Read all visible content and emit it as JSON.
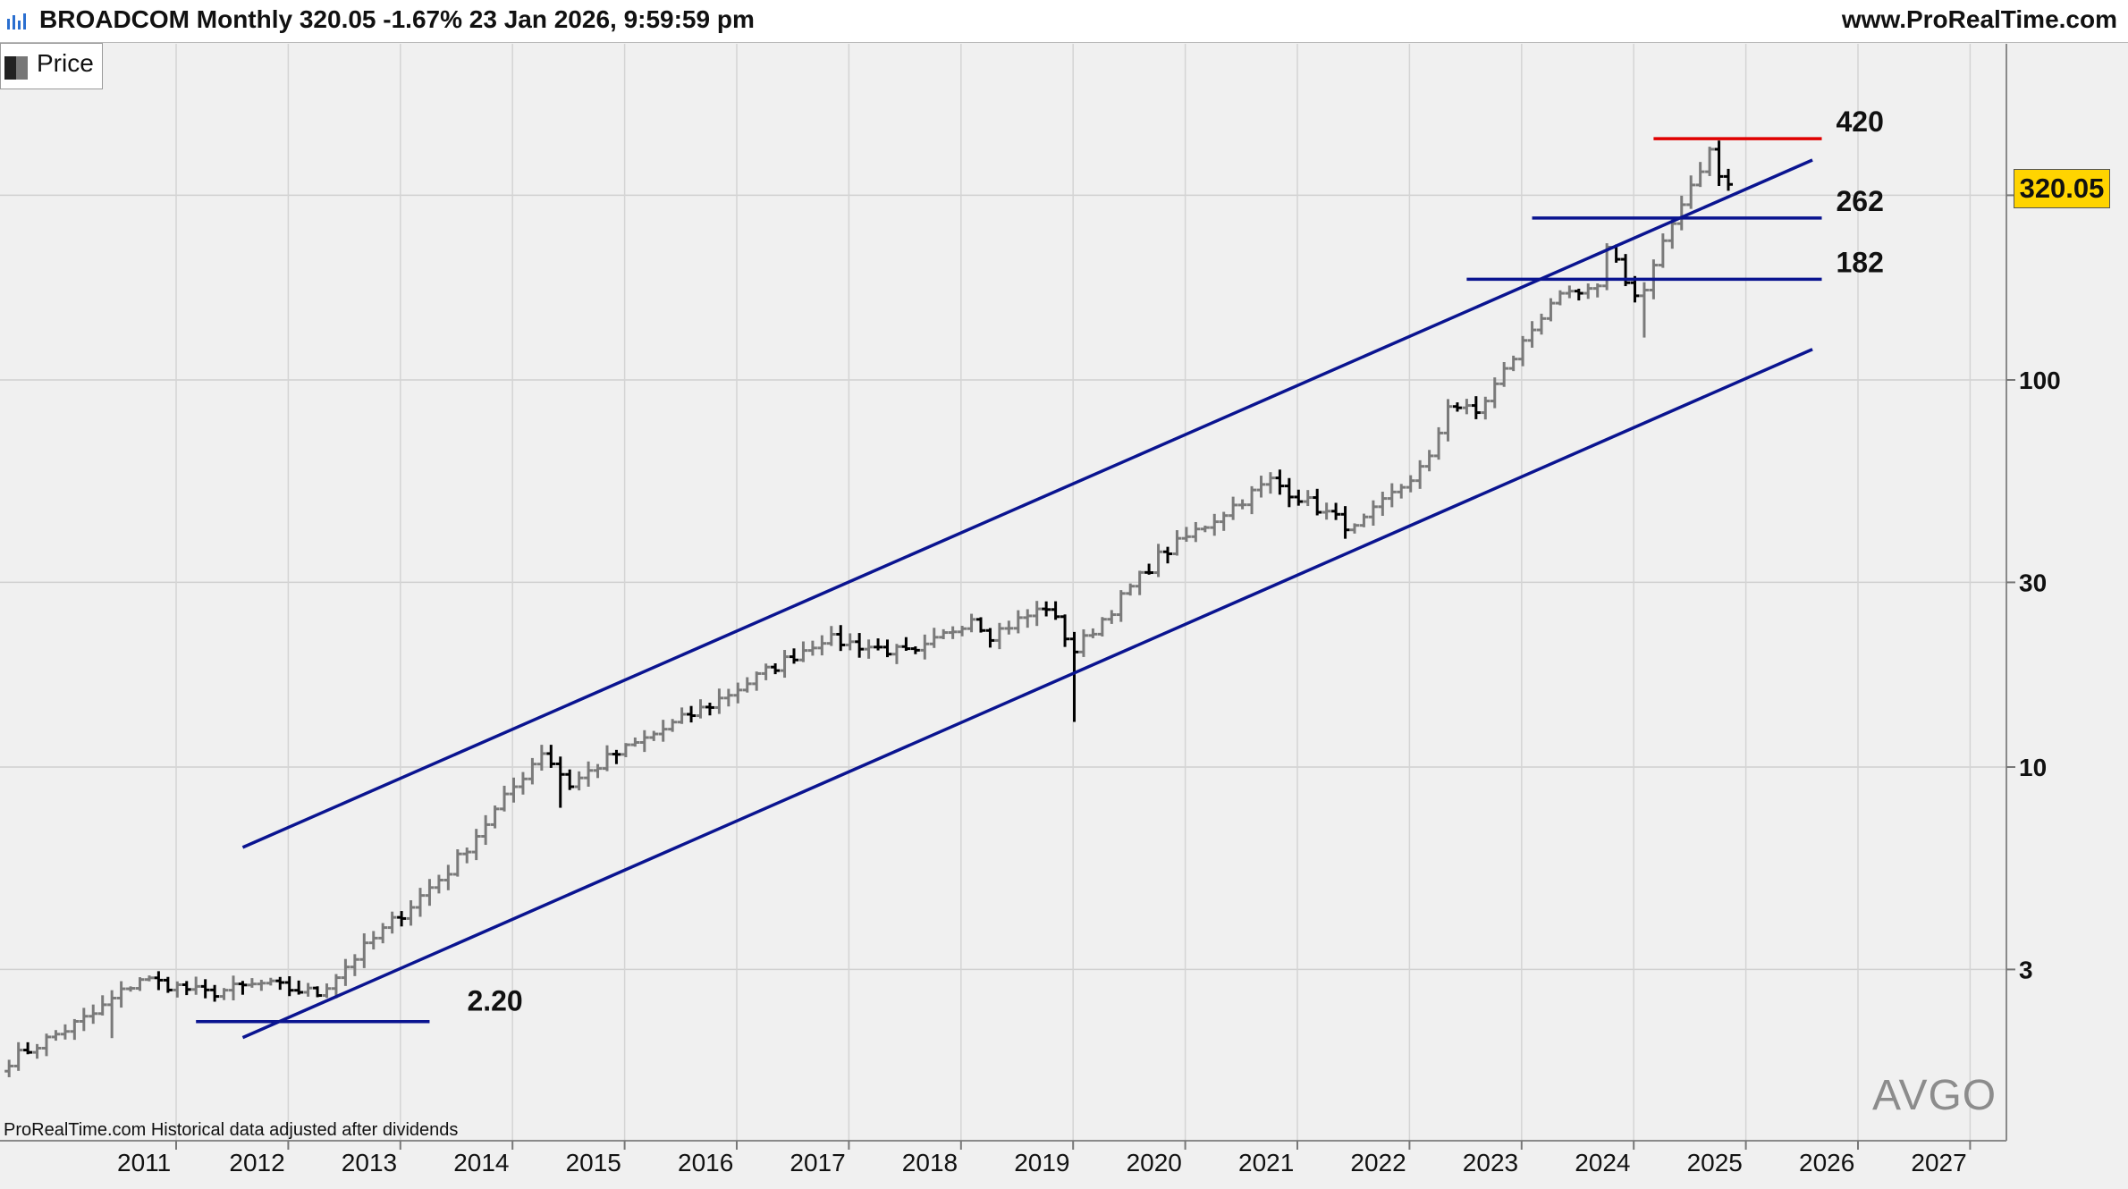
{
  "header": {
    "title": "BROADCOM Monthly 320.05 -1.67% 23 Jan 2026, 9:59:59 pm",
    "brand": "www.ProRealTime.com"
  },
  "legend": {
    "label": "Price"
  },
  "footer": {
    "note": "ProRealTime.com  Historical data adjusted after dividends"
  },
  "watermark": "AVGO",
  "last_price": "320.05",
  "colors": {
    "background": "#f0f0f0",
    "channel": "#0a1490",
    "resistance": "#e00000",
    "bar_up": "#7a7a7a",
    "bar_down": "#000000",
    "price_tag": "#ffd400"
  },
  "chart_data": {
    "type": "ohlc",
    "title": "BROADCOM Monthly",
    "y_scale": "log",
    "ylim": [
      1.35,
      600
    ],
    "yticks": [
      3,
      10,
      30,
      100
    ],
    "ytick_labels": [
      "3",
      "10",
      "30",
      "100"
    ],
    "x_year_labels": [
      "2011",
      "2012",
      "2013",
      "2014",
      "2015",
      "2016",
      "2017",
      "2018",
      "2019",
      "2020",
      "2021",
      "2022",
      "2023",
      "2024",
      "2025",
      "2026",
      "2027"
    ],
    "xlim": [
      "2010-09",
      "2027-12"
    ],
    "grid": true,
    "last_close": 320.05,
    "series_anchors": [
      {
        "date": "2010-09",
        "price": 1.75
      },
      {
        "date": "2011-06",
        "price": 2.3
      },
      {
        "date": "2011-11",
        "price": 2.85
      },
      {
        "date": "2012-06",
        "price": 2.6
      },
      {
        "date": "2012-12",
        "price": 2.75
      },
      {
        "date": "2013-06",
        "price": 2.6
      },
      {
        "date": "2013-12",
        "price": 3.6
      },
      {
        "date": "2014-08",
        "price": 5.4
      },
      {
        "date": "2015-06",
        "price": 11.0
      },
      {
        "date": "2015-09",
        "price": 9.0
      },
      {
        "date": "2016-01",
        "price": 10.5
      },
      {
        "date": "2016-12",
        "price": 14.5
      },
      {
        "date": "2017-12",
        "price": 21.5
      },
      {
        "date": "2018-10",
        "price": 19.5
      },
      {
        "date": "2019-04",
        "price": 24.5
      },
      {
        "date": "2019-06",
        "price": 22.0
      },
      {
        "date": "2019-12",
        "price": 26.0
      },
      {
        "date": "2020-03",
        "price": 20.0
      },
      {
        "date": "2020-12",
        "price": 35.0
      },
      {
        "date": "2021-12",
        "price": 55.0
      },
      {
        "date": "2022-09",
        "price": 41.0
      },
      {
        "date": "2023-05",
        "price": 62.0
      },
      {
        "date": "2023-07",
        "price": 87.0
      },
      {
        "date": "2023-10",
        "price": 82.0
      },
      {
        "date": "2024-06",
        "price": 160.0
      },
      {
        "date": "2024-11",
        "price": 170.0
      },
      {
        "date": "2024-12",
        "price": 225.0
      },
      {
        "date": "2025-03",
        "price": 165.0
      },
      {
        "date": "2025-04",
        "price": 170.0
      },
      {
        "date": "2025-08",
        "price": 290.0
      },
      {
        "date": "2025-11",
        "price": 390.0
      },
      {
        "date": "2025-12",
        "price": 335.0
      },
      {
        "date": "2026-01",
        "price": 320.05
      }
    ],
    "channel_upper": {
      "from": {
        "date": "2012-10",
        "price": 6.2
      },
      "to": {
        "date": "2026-10",
        "price": 370
      }
    },
    "channel_lower": {
      "from": {
        "date": "2012-10",
        "price": 2.0
      },
      "to": {
        "date": "2026-10",
        "price": 120
      }
    },
    "levels": [
      {
        "value": 420,
        "label": "420",
        "color": "#e00000",
        "from": "2025-05",
        "to": "2026-11"
      },
      {
        "value": 262,
        "label": "262",
        "color": "#0a1490",
        "from": "2024-04",
        "to": "2026-11"
      },
      {
        "value": 182,
        "label": "182",
        "color": "#0a1490",
        "from": "2023-09",
        "to": "2026-11"
      },
      {
        "value": 2.2,
        "label": "2.20",
        "color": "#0a1490",
        "from": "2012-05",
        "to": "2014-06"
      }
    ]
  }
}
